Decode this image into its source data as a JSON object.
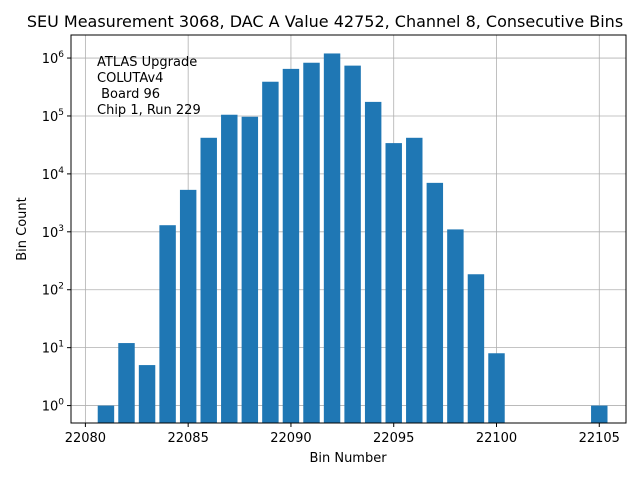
{
  "chart_data": {
    "type": "bar",
    "title": "SEU Measurement 3068, DAC A Value 42752, Channel 8, Consecutive Bins",
    "xlabel": "Bin Number",
    "ylabel": "Bin Count",
    "y_scale": "log",
    "ylim": [
      0.5,
      2500000
    ],
    "xlim": [
      22079.3,
      22106.3
    ],
    "grid": true,
    "bar_color": "#1f77b4",
    "annotation": [
      "ATLAS Upgrade",
      "COLUTAv4",
      " Board 96",
      "Chip 1, Run 229"
    ],
    "x_ticks": [
      22080,
      22085,
      22090,
      22095,
      22100,
      22105
    ],
    "x_tick_labels": [
      "22080",
      "22085",
      "22090",
      "22095",
      "22100",
      "22105"
    ],
    "y_ticks": [
      {
        "value": 1,
        "base": "10",
        "exp": "0"
      },
      {
        "value": 10,
        "base": "10",
        "exp": "1"
      },
      {
        "value": 100,
        "base": "10",
        "exp": "2"
      },
      {
        "value": 1000,
        "base": "10",
        "exp": "3"
      },
      {
        "value": 10000,
        "base": "10",
        "exp": "4"
      },
      {
        "value": 100000,
        "base": "10",
        "exp": "5"
      },
      {
        "value": 1000000,
        "base": "10",
        "exp": "6"
      }
    ],
    "x": [
      22081,
      22082,
      22083,
      22084,
      22085,
      22086,
      22087,
      22088,
      22089,
      22090,
      22091,
      22092,
      22093,
      22094,
      22095,
      22096,
      22097,
      22098,
      22099,
      22100,
      22105
    ],
    "values": [
      1,
      12,
      5,
      1300,
      5300,
      42000,
      105000,
      97000,
      390000,
      650000,
      830000,
      1200000,
      740000,
      175000,
      34000,
      42000,
      7000,
      1100,
      185,
      8,
      1
    ]
  }
}
